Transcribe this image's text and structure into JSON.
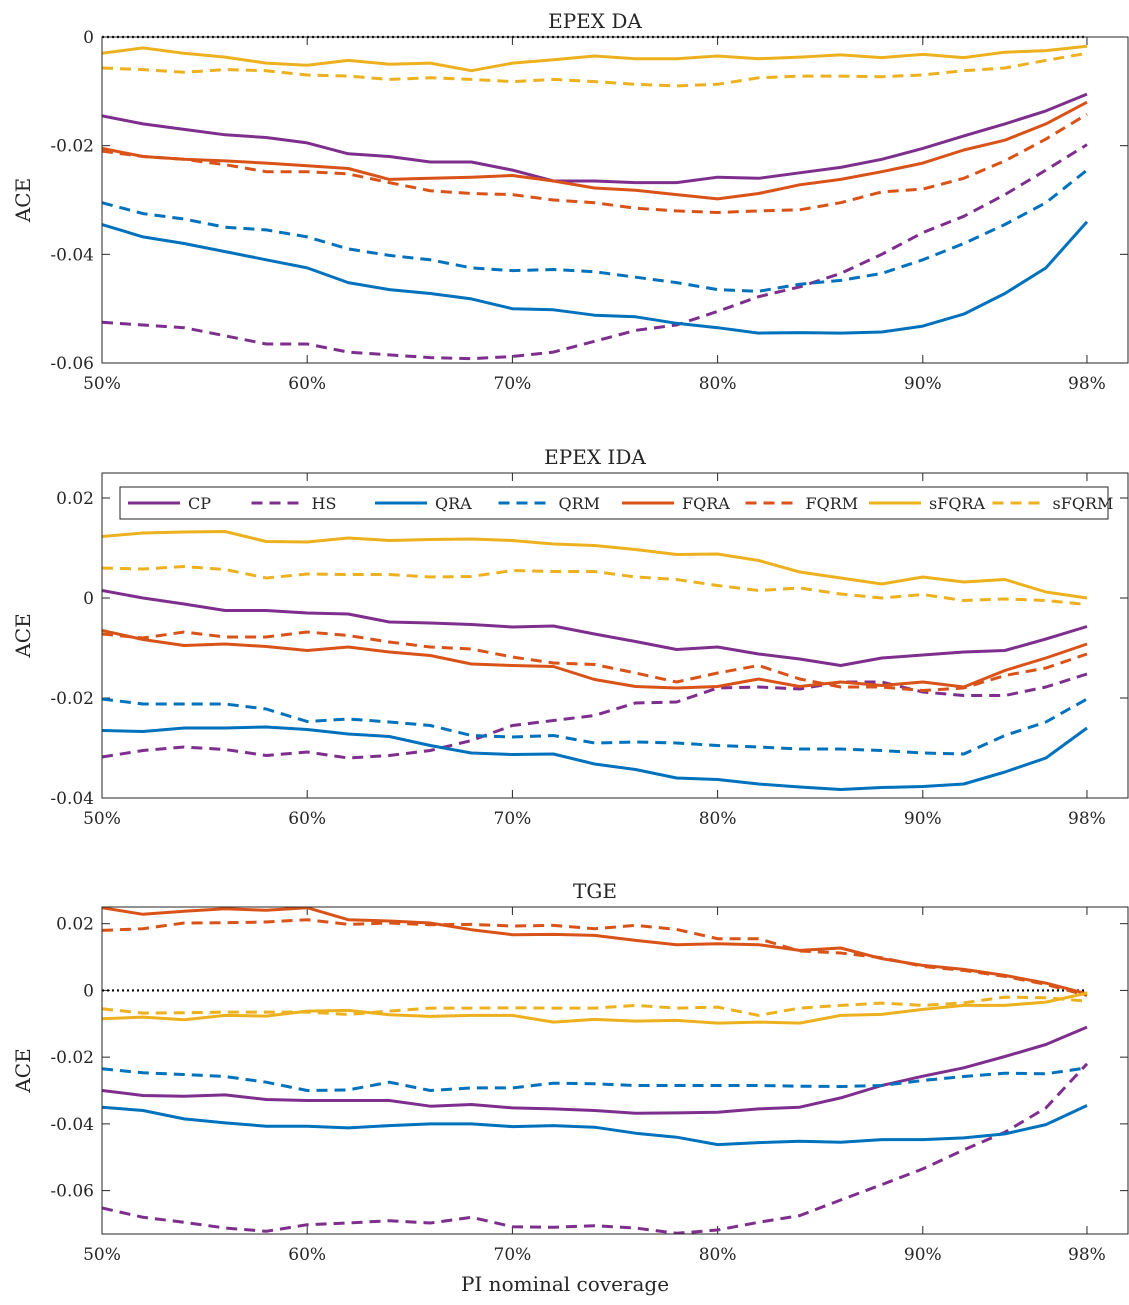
{
  "xlabel": "PI nominal coverage",
  "legend": [
    {
      "name": "CP",
      "color": "#7E2F8E",
      "dash": false
    },
    {
      "name": "HS",
      "color": "#7E2F8E",
      "dash": true
    },
    {
      "name": "QRA",
      "color": "#0072BD",
      "dash": false
    },
    {
      "name": "QRM",
      "color": "#0072BD",
      "dash": true
    },
    {
      "name": "FQRA",
      "color": "#D95319",
      "dash": false
    },
    {
      "name": "FQRM",
      "color": "#D95319",
      "dash": true
    },
    {
      "name": "sFQRA",
      "color": "#EDB120",
      "dash": false
    },
    {
      "name": "sFQRM",
      "color": "#EDB120",
      "dash": true
    }
  ],
  "chart_data": [
    {
      "type": "line",
      "title": "EPEX DA",
      "ylabel": "ACE",
      "xlabel": "",
      "x": [
        50,
        52,
        54,
        56,
        58,
        60,
        62,
        64,
        66,
        68,
        70,
        72,
        74,
        76,
        78,
        80,
        82,
        84,
        86,
        88,
        90,
        92,
        94,
        96,
        98
      ],
      "xticks": [
        50,
        60,
        70,
        80,
        90,
        98
      ],
      "xticklabels": [
        "50%",
        "60%",
        "70%",
        "80%",
        "90%",
        "98%"
      ],
      "xlim": [
        50,
        100
      ],
      "ylim": [
        -0.06,
        0
      ],
      "yticks": [
        0,
        -0.02,
        -0.04,
        -0.06
      ],
      "yticklabels": [
        "0",
        "-0.02",
        "-0.04",
        "-0.06"
      ],
      "zero_line": true,
      "series": [
        {
          "name": "CP",
          "values": [
            -0.0145,
            -0.016,
            -0.017,
            -0.018,
            -0.0185,
            -0.0195,
            -0.0215,
            -0.022,
            -0.023,
            -0.023,
            -0.0245,
            -0.0265,
            -0.0265,
            -0.0268,
            -0.0268,
            -0.0258,
            -0.026,
            -0.025,
            -0.024,
            -0.0225,
            -0.0205,
            -0.0182,
            -0.016,
            -0.0136,
            -0.0105
          ]
        },
        {
          "name": "HS",
          "values": [
            -0.0525,
            -0.053,
            -0.0535,
            -0.055,
            -0.0565,
            -0.0565,
            -0.058,
            -0.0585,
            -0.059,
            -0.0592,
            -0.0588,
            -0.058,
            -0.056,
            -0.054,
            -0.053,
            -0.0505,
            -0.0478,
            -0.046,
            -0.0435,
            -0.04,
            -0.036,
            -0.033,
            -0.029,
            -0.0245,
            -0.0198
          ]
        },
        {
          "name": "QRA",
          "values": [
            -0.0345,
            -0.0368,
            -0.038,
            -0.0395,
            -0.041,
            -0.0425,
            -0.0452,
            -0.0465,
            -0.0472,
            -0.0482,
            -0.05,
            -0.0502,
            -0.0512,
            -0.0515,
            -0.0527,
            -0.0535,
            -0.0545,
            -0.0544,
            -0.0545,
            -0.0543,
            -0.0532,
            -0.051,
            -0.0472,
            -0.0425,
            -0.034
          ]
        },
        {
          "name": "QRM",
          "values": [
            -0.0305,
            -0.0325,
            -0.0335,
            -0.035,
            -0.0355,
            -0.0368,
            -0.039,
            -0.0402,
            -0.041,
            -0.0425,
            -0.043,
            -0.0428,
            -0.0432,
            -0.0442,
            -0.0452,
            -0.0465,
            -0.0468,
            -0.0455,
            -0.0448,
            -0.0435,
            -0.041,
            -0.038,
            -0.0345,
            -0.0305,
            -0.0245
          ]
        },
        {
          "name": "FQRA",
          "values": [
            -0.0205,
            -0.022,
            -0.0225,
            -0.0228,
            -0.0232,
            -0.0237,
            -0.0242,
            -0.0262,
            -0.026,
            -0.0258,
            -0.0255,
            -0.0265,
            -0.0278,
            -0.0282,
            -0.029,
            -0.0298,
            -0.0288,
            -0.0272,
            -0.0262,
            -0.0248,
            -0.0232,
            -0.0208,
            -0.019,
            -0.016,
            -0.012
          ]
        },
        {
          "name": "FQRM",
          "values": [
            -0.021,
            -0.022,
            -0.0225,
            -0.0235,
            -0.0248,
            -0.0248,
            -0.0252,
            -0.0268,
            -0.0283,
            -0.0288,
            -0.029,
            -0.03,
            -0.0305,
            -0.0315,
            -0.032,
            -0.0323,
            -0.032,
            -0.0318,
            -0.0305,
            -0.0285,
            -0.028,
            -0.026,
            -0.0228,
            -0.0188,
            -0.0142
          ]
        },
        {
          "name": "sFQRA",
          "values": [
            -0.003,
            -0.002,
            -0.003,
            -0.0037,
            -0.0048,
            -0.0052,
            -0.0043,
            -0.005,
            -0.0048,
            -0.0062,
            -0.0048,
            -0.0042,
            -0.0035,
            -0.004,
            -0.004,
            -0.0035,
            -0.004,
            -0.0037,
            -0.0033,
            -0.0038,
            -0.0032,
            -0.0038,
            -0.0028,
            -0.0025,
            -0.0017
          ]
        },
        {
          "name": "sFQRM",
          "values": [
            -0.0057,
            -0.006,
            -0.0065,
            -0.006,
            -0.0062,
            -0.007,
            -0.0072,
            -0.0078,
            -0.0075,
            -0.0078,
            -0.0082,
            -0.0078,
            -0.0082,
            -0.0087,
            -0.009,
            -0.0087,
            -0.0075,
            -0.0072,
            -0.0072,
            -0.0073,
            -0.007,
            -0.0062,
            -0.0057,
            -0.0043,
            -0.003
          ]
        }
      ]
    },
    {
      "type": "line",
      "title": "EPEX IDA",
      "ylabel": "ACE",
      "xlabel": "",
      "x": [
        50,
        52,
        54,
        56,
        58,
        60,
        62,
        64,
        66,
        68,
        70,
        72,
        74,
        76,
        78,
        80,
        82,
        84,
        86,
        88,
        90,
        92,
        94,
        96,
        98
      ],
      "xticks": [
        50,
        60,
        70,
        80,
        90,
        98
      ],
      "xticklabels": [
        "50%",
        "60%",
        "70%",
        "80%",
        "90%",
        "98%"
      ],
      "xlim": [
        50,
        100
      ],
      "ylim": [
        -0.04,
        0.025
      ],
      "yticks": [
        0.02,
        0,
        -0.02,
        -0.04
      ],
      "yticklabels": [
        "0.02",
        "0",
        "-0.02",
        "-0.04"
      ],
      "zero_line": false,
      "legend_position": "top",
      "series": [
        {
          "name": "CP",
          "values": [
            0.0015,
            0,
            -0.0012,
            -0.0025,
            -0.0025,
            -0.003,
            -0.0032,
            -0.0048,
            -0.005,
            -0.0053,
            -0.0058,
            -0.0056,
            -0.0072,
            -0.0087,
            -0.0103,
            -0.0098,
            -0.0112,
            -0.0122,
            -0.0135,
            -0.012,
            -0.0114,
            -0.0108,
            -0.0105,
            -0.0082,
            -0.0057
          ]
        },
        {
          "name": "HS",
          "values": [
            -0.0318,
            -0.0305,
            -0.0298,
            -0.0303,
            -0.0315,
            -0.0308,
            -0.032,
            -0.0315,
            -0.0305,
            -0.0285,
            -0.0255,
            -0.0245,
            -0.0235,
            -0.021,
            -0.0208,
            -0.018,
            -0.0178,
            -0.0182,
            -0.0168,
            -0.0168,
            -0.0188,
            -0.0195,
            -0.0195,
            -0.0178,
            -0.0152
          ]
        },
        {
          "name": "QRA",
          "values": [
            -0.0265,
            -0.0267,
            -0.026,
            -0.026,
            -0.0258,
            -0.0263,
            -0.0272,
            -0.0277,
            -0.0295,
            -0.031,
            -0.0313,
            -0.0312,
            -0.0332,
            -0.0343,
            -0.036,
            -0.0363,
            -0.0372,
            -0.0378,
            -0.0383,
            -0.0379,
            -0.0377,
            -0.0372,
            -0.0348,
            -0.032,
            -0.026
          ]
        },
        {
          "name": "QRM",
          "values": [
            -0.0202,
            -0.0212,
            -0.0212,
            -0.0212,
            -0.0222,
            -0.0247,
            -0.0242,
            -0.0248,
            -0.0255,
            -0.0275,
            -0.0278,
            -0.0275,
            -0.029,
            -0.0288,
            -0.029,
            -0.0295,
            -0.0298,
            -0.0302,
            -0.0302,
            -0.0305,
            -0.031,
            -0.0312,
            -0.0275,
            -0.0248,
            -0.0202
          ]
        },
        {
          "name": "FQRA",
          "values": [
            -0.0065,
            -0.0083,
            -0.0095,
            -0.0092,
            -0.0097,
            -0.0105,
            -0.0098,
            -0.0108,
            -0.0115,
            -0.0132,
            -0.0135,
            -0.0137,
            -0.0163,
            -0.0177,
            -0.018,
            -0.0177,
            -0.0162,
            -0.0177,
            -0.0168,
            -0.0175,
            -0.0168,
            -0.0178,
            -0.0145,
            -0.012,
            -0.0092
          ]
        },
        {
          "name": "FQRM",
          "values": [
            -0.0072,
            -0.008,
            -0.0068,
            -0.0078,
            -0.0078,
            -0.0068,
            -0.0075,
            -0.0088,
            -0.0098,
            -0.0102,
            -0.0118,
            -0.013,
            -0.0133,
            -0.015,
            -0.0168,
            -0.015,
            -0.0135,
            -0.0162,
            -0.0178,
            -0.0178,
            -0.0185,
            -0.018,
            -0.0155,
            -0.014,
            -0.0112
          ]
        },
        {
          "name": "sFQRA",
          "values": [
            0.0123,
            0.013,
            0.0132,
            0.0133,
            0.0113,
            0.0112,
            0.012,
            0.0115,
            0.0117,
            0.0118,
            0.0115,
            0.0108,
            0.0105,
            0.0097,
            0.0087,
            0.0088,
            0.0075,
            0.0052,
            0.004,
            0.0028,
            0.0042,
            0.0032,
            0.0037,
            0.0012,
            0
          ]
        },
        {
          "name": "sFQRM",
          "values": [
            0.006,
            0.0058,
            0.0063,
            0.0057,
            0.004,
            0.0048,
            0.0047,
            0.0047,
            0.0042,
            0.0043,
            0.0055,
            0.0053,
            0.0053,
            0.0042,
            0.0037,
            0.0025,
            0.0015,
            0.002,
            0.0008,
            0,
            0.0007,
            -0.0005,
            -0.0002,
            -0.0005,
            -0.0013
          ]
        }
      ]
    },
    {
      "type": "line",
      "title": "TGE",
      "ylabel": "ACE",
      "xlabel": "PI nominal coverage",
      "x": [
        50,
        52,
        54,
        56,
        58,
        60,
        62,
        64,
        66,
        68,
        70,
        72,
        74,
        76,
        78,
        80,
        82,
        84,
        86,
        88,
        90,
        92,
        94,
        96,
        98
      ],
      "xticks": [
        50,
        60,
        70,
        80,
        90,
        98
      ],
      "xticklabels": [
        "50%",
        "60%",
        "70%",
        "80%",
        "90%",
        "98%"
      ],
      "xlim": [
        50,
        100
      ],
      "ylim": [
        -0.073,
        0.025
      ],
      "yticks": [
        0.02,
        0,
        -0.02,
        -0.04,
        -0.06
      ],
      "yticklabels": [
        "0.02",
        "0",
        "-0.02",
        "-0.04",
        "-0.06"
      ],
      "zero_line": true,
      "series": [
        {
          "name": "CP",
          "values": [
            -0.03,
            -0.0315,
            -0.0317,
            -0.0313,
            -0.0327,
            -0.033,
            -0.033,
            -0.033,
            -0.0347,
            -0.0342,
            -0.0352,
            -0.0355,
            -0.036,
            -0.0368,
            -0.0367,
            -0.0365,
            -0.0355,
            -0.035,
            -0.0322,
            -0.0285,
            -0.0257,
            -0.0232,
            -0.0198,
            -0.0162,
            -0.011
          ]
        },
        {
          "name": "HS",
          "values": [
            -0.0652,
            -0.068,
            -0.0695,
            -0.0712,
            -0.0722,
            -0.0702,
            -0.0697,
            -0.069,
            -0.0697,
            -0.068,
            -0.0708,
            -0.071,
            -0.0705,
            -0.0712,
            -0.0728,
            -0.0718,
            -0.0695,
            -0.0675,
            -0.0628,
            -0.0582,
            -0.0535,
            -0.0478,
            -0.0425,
            -0.0352,
            -0.022
          ]
        },
        {
          "name": "QRA",
          "values": [
            -0.035,
            -0.036,
            -0.0385,
            -0.0397,
            -0.0407,
            -0.0407,
            -0.0412,
            -0.0405,
            -0.04,
            -0.04,
            -0.0408,
            -0.0405,
            -0.041,
            -0.0428,
            -0.044,
            -0.0462,
            -0.0456,
            -0.0452,
            -0.0455,
            -0.0447,
            -0.0447,
            -0.0442,
            -0.043,
            -0.0402,
            -0.0345
          ]
        },
        {
          "name": "QRM",
          "values": [
            -0.0235,
            -0.0247,
            -0.0252,
            -0.0258,
            -0.0275,
            -0.03,
            -0.0298,
            -0.0275,
            -0.03,
            -0.0292,
            -0.0292,
            -0.0278,
            -0.028,
            -0.0285,
            -0.0285,
            -0.0285,
            -0.0285,
            -0.0287,
            -0.0288,
            -0.0285,
            -0.027,
            -0.0258,
            -0.0248,
            -0.025,
            -0.0232
          ]
        },
        {
          "name": "FQRA",
          "values": [
            0.0248,
            0.0228,
            0.0237,
            0.0245,
            0.024,
            0.0248,
            0.0212,
            0.0208,
            0.0202,
            0.0182,
            0.0167,
            0.0168,
            0.0165,
            0.015,
            0.0137,
            0.014,
            0.0137,
            0.012,
            0.0127,
            0.0095,
            0.0075,
            0.0063,
            0.0045,
            0.0022,
            -0.001
          ]
        },
        {
          "name": "FQRM",
          "values": [
            0.018,
            0.0185,
            0.0202,
            0.0203,
            0.0205,
            0.0212,
            0.0198,
            0.0202,
            0.0197,
            0.0198,
            0.0193,
            0.0195,
            0.0185,
            0.0195,
            0.0183,
            0.0155,
            0.0155,
            0.0118,
            0.0112,
            0.0098,
            0.0072,
            0.006,
            0.0042,
            0.0018,
            -0.0015
          ]
        },
        {
          "name": "sFQRA",
          "values": [
            -0.0085,
            -0.008,
            -0.0088,
            -0.0075,
            -0.0077,
            -0.0062,
            -0.006,
            -0.0073,
            -0.0078,
            -0.0075,
            -0.0075,
            -0.0095,
            -0.0087,
            -0.0092,
            -0.009,
            -0.0098,
            -0.0095,
            -0.0098,
            -0.0075,
            -0.0072,
            -0.0057,
            -0.0045,
            -0.0045,
            -0.0035,
            -0.0008
          ]
        },
        {
          "name": "sFQRM",
          "values": [
            -0.0055,
            -0.0068,
            -0.0067,
            -0.0065,
            -0.0065,
            -0.0065,
            -0.0072,
            -0.0062,
            -0.0053,
            -0.0053,
            -0.0052,
            -0.0053,
            -0.0053,
            -0.0045,
            -0.0053,
            -0.005,
            -0.0075,
            -0.0053,
            -0.0045,
            -0.0038,
            -0.0045,
            -0.0037,
            -0.002,
            -0.0022,
            -0.0032
          ]
        }
      ]
    }
  ]
}
